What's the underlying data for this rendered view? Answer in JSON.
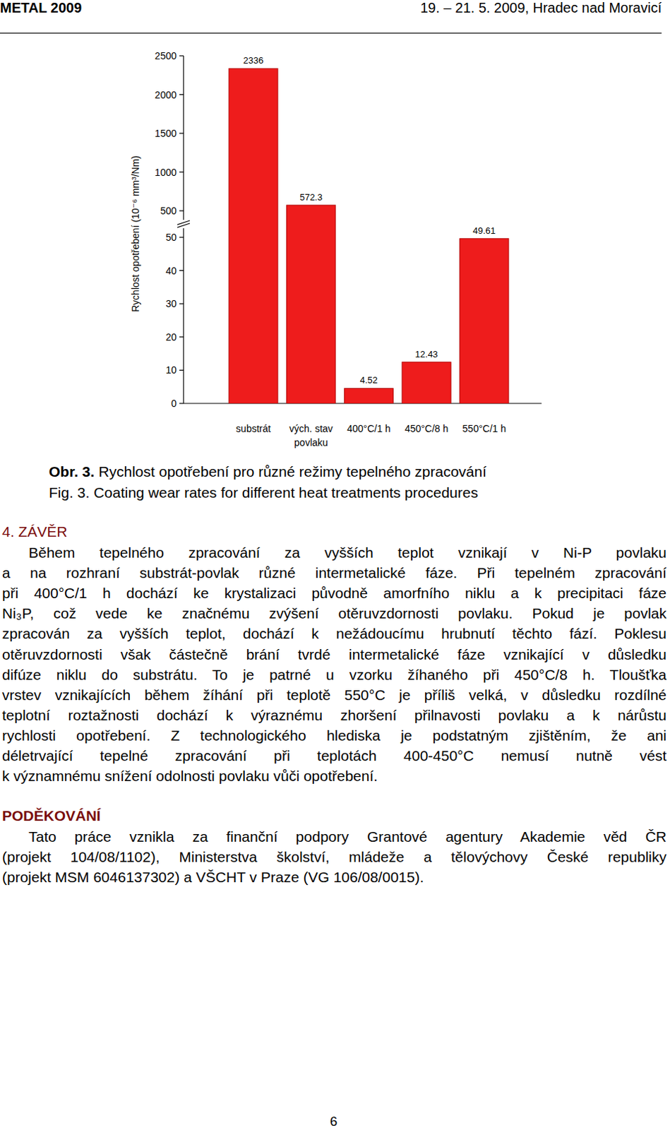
{
  "header": {
    "left": "METAL 2009",
    "right": "19. – 21. 5. 2009, Hradec nad Moravicí"
  },
  "chart_data": {
    "type": "bar",
    "y_label": "Rychlost opotřebení (10⁻⁶ mm³/Nm)",
    "categories": [
      "substrát",
      "vých. stav\npovlaku",
      "400°C/1 h",
      "450°C/8 h",
      "550°C/1 h"
    ],
    "values": [
      2336,
      572.3,
      4.52,
      12.43,
      49.61
    ],
    "color": "#ee1c1c",
    "ylim": [
      0,
      2500
    ],
    "yticks": [
      0,
      10,
      20,
      30,
      40,
      50,
      500,
      1000,
      1500,
      2000,
      2500
    ],
    "data_labels": true
  },
  "caption": {
    "cz_label": "Obr. 3.",
    "cz": "Rychlost opotřebení pro různé režimy tepelného zpracování",
    "en_label": "Fig. 3.",
    "en": "Coating wear rates for different heat treatments procedures"
  },
  "conclusion": {
    "heading": "4. ZÁVĚR",
    "lines": [
      "Během tepelného zpracování za vyšších teplot vznikají v Ni-P povlaku",
      "a na rozhraní substrát-povlak různé intermetalické fáze. Při tepelném zpracování",
      "při 400°C/1 h dochází ke krystalizaci původně amorfního niklu a k precipitaci fáze",
      "Ni₃P, což vede ke značnému zvýšení otěruvzdornosti povlaku. Pokud je povlak",
      "zpracován za vyšších teplot, dochází k nežádoucímu hrubnutí těchto fází. Poklesu",
      "otěruvzdornosti však částečně brání tvrdé intermetalické fáze vznikající v důsledku",
      "difúze niklu do substrátu. To je patrné u vzorku žíhaného při 450°C/8 h. Tloušťka",
      "vrstev vznikajících během žíhání při teplotě 550°C je příliš velká, v důsledku rozdílné",
      "teplotní roztažnosti dochází k výraznému zhoršení přilnavosti povlaku a k nárůstu",
      "rychlosti opotřebení. Z technologického hlediska je podstatným zjištěním, že ani",
      "déletrvající tepelné zpracování při teplotách 400-450°C nemusí nutně vést",
      "k významnému snížení odolnosti povlaku vůči opotřebení."
    ]
  },
  "acknowledgement": {
    "heading": "PODĚKOVÁNÍ",
    "lines": [
      "Tato práce vznikla za finanční podpory Grantové agentury Akademie věd ČR",
      "(projekt 104/08/1102), Ministerstva školství, mládeže a tělovýchovy České republiky",
      "(projekt MSM 6046137302) a VŠCHT v Praze (VG 106/08/0015)."
    ]
  },
  "page_number": "6"
}
